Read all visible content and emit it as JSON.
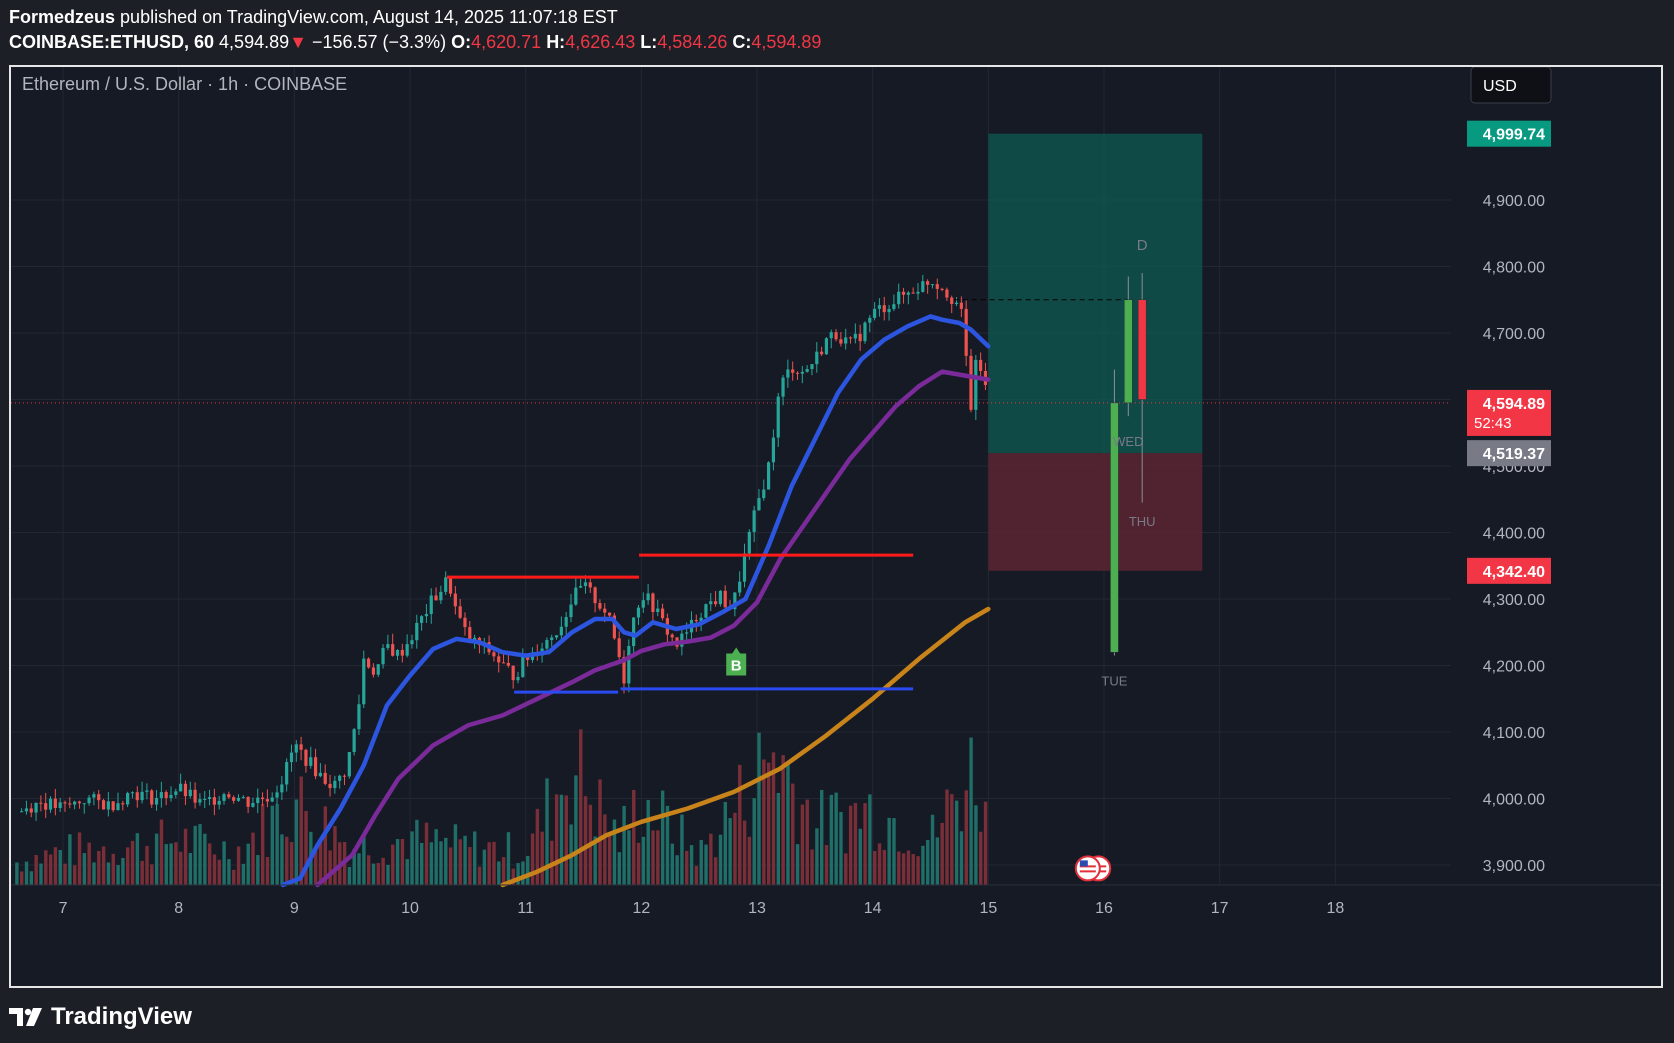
{
  "header": {
    "author": "Formedzeus",
    "published": "published on TradingView.com, August 14, 2025 11:07:18 EST",
    "symbol": "COINBASE:ETHUSD, 60",
    "last": "4,594.89",
    "change_arrow": "▼",
    "change": "−156.57 (−3.3%)",
    "o_label": "O:",
    "o": "4,620.71",
    "h_label": "H:",
    "h": "4,626.43",
    "l_label": "L:",
    "l": "4,584.26",
    "c_label": "C:",
    "c": "4,594.89"
  },
  "footer": {
    "brand": "TradingView",
    "logo_icon": "tradingview-logo-icon"
  },
  "chart_data": {
    "type": "candlestick",
    "title": "Ethereum / U.S. Dollar · 1h · COINBASE",
    "currency_button": "USD",
    "x_tick_labels": [
      "7",
      "8",
      "9",
      "10",
      "11",
      "12",
      "13",
      "14",
      "15",
      "16",
      "17",
      "18"
    ],
    "y_tick_labels": [
      "3,900.00",
      "4,000.00",
      "4,100.00",
      "4,200.00",
      "4,300.00",
      "4,400.00",
      "4,500.00",
      "4,600.00",
      "4,700.00",
      "4,800.00",
      "4,900.00"
    ],
    "y_ticks": [
      3900,
      4000,
      4100,
      4200,
      4300,
      4400,
      4500,
      4600,
      4700,
      4800,
      4900
    ],
    "ylim": [
      3870,
      5100
    ],
    "x_range_days": [
      6.55,
      19.0
    ],
    "last_price": {
      "value": 4594.89,
      "label": "4,594.89",
      "countdown": "52:43",
      "color": "#f23645"
    },
    "price_levels": [
      {
        "value": 4999.74,
        "label": "4,999.74",
        "color": "#089981"
      },
      {
        "value": 4519.37,
        "label": "4,519.37",
        "color": "#787b86"
      },
      {
        "value": 4342.4,
        "label": "4,342.40",
        "color": "#f23645"
      }
    ],
    "position": {
      "entry": 4519.37,
      "target": 4999.74,
      "stop": 4342.4,
      "x_start": 15.0,
      "x_end": 16.85
    },
    "resistance_lines": [
      {
        "from": 10.32,
        "to": 11.98,
        "y": 4333,
        "color": "#ff1a1a"
      },
      {
        "from": 11.98,
        "to": 14.35,
        "y": 4366,
        "color": "#ff1a1a"
      }
    ],
    "support_lines": [
      {
        "from": 10.9,
        "to": 11.8,
        "y": 4160,
        "color": "#2a4bf2"
      },
      {
        "from": 11.82,
        "to": 14.35,
        "y": 4165,
        "color": "#2a4bf2"
      }
    ],
    "signal": {
      "label": "B",
      "x": 12.82,
      "y": 4203,
      "color": "#4caf50"
    },
    "projection": {
      "candles": [
        {
          "x": 16.09,
          "o": 4220,
          "h": 4645,
          "l": 4215,
          "c": 4595,
          "color": "#4caf50",
          "label": "TUE"
        },
        {
          "x": 16.21,
          "o": 4595,
          "h": 4785,
          "l": 4575,
          "c": 4750,
          "color": "#4caf50",
          "label": "WED"
        },
        {
          "x": 16.33,
          "o": 4750,
          "h": 4790,
          "l": 4445,
          "c": 4600,
          "color": "#f23645",
          "label": "THU"
        }
      ],
      "dashed_level": 4750,
      "top_label": "D"
    },
    "moving_averages": [
      {
        "name": "fast",
        "color": "#2c55e0",
        "points": [
          [
            8.9,
            3870
          ],
          [
            9.05,
            3880
          ],
          [
            9.2,
            3930
          ],
          [
            9.4,
            3985
          ],
          [
            9.6,
            4050
          ],
          [
            9.8,
            4140
          ],
          [
            10.0,
            4185
          ],
          [
            10.2,
            4225
          ],
          [
            10.4,
            4240
          ],
          [
            10.6,
            4235
          ],
          [
            10.8,
            4220
          ],
          [
            11.0,
            4215
          ],
          [
            11.2,
            4220
          ],
          [
            11.4,
            4250
          ],
          [
            11.6,
            4270
          ],
          [
            11.75,
            4270
          ],
          [
            11.85,
            4250
          ],
          [
            11.95,
            4245
          ],
          [
            12.1,
            4265
          ],
          [
            12.3,
            4255
          ],
          [
            12.5,
            4262
          ],
          [
            12.7,
            4280
          ],
          [
            12.9,
            4300
          ],
          [
            13.1,
            4380
          ],
          [
            13.3,
            4470
          ],
          [
            13.5,
            4540
          ],
          [
            13.7,
            4610
          ],
          [
            13.9,
            4660
          ],
          [
            14.1,
            4690
          ],
          [
            14.3,
            4710
          ],
          [
            14.5,
            4725
          ],
          [
            14.6,
            4720
          ],
          [
            14.75,
            4715
          ],
          [
            14.85,
            4705
          ],
          [
            15.0,
            4680
          ]
        ]
      },
      {
        "name": "mid",
        "color": "#7b2a9a",
        "points": [
          [
            9.2,
            3870
          ],
          [
            9.5,
            3915
          ],
          [
            9.7,
            3975
          ],
          [
            9.9,
            4030
          ],
          [
            10.2,
            4080
          ],
          [
            10.5,
            4110
          ],
          [
            10.8,
            4125
          ],
          [
            11.1,
            4150
          ],
          [
            11.4,
            4175
          ],
          [
            11.6,
            4193
          ],
          [
            11.85,
            4208
          ],
          [
            12.0,
            4222
          ],
          [
            12.2,
            4232
          ],
          [
            12.4,
            4236
          ],
          [
            12.6,
            4242
          ],
          [
            12.8,
            4260
          ],
          [
            13.0,
            4295
          ],
          [
            13.2,
            4360
          ],
          [
            13.4,
            4410
          ],
          [
            13.6,
            4460
          ],
          [
            13.8,
            4510
          ],
          [
            14.0,
            4550
          ],
          [
            14.2,
            4590
          ],
          [
            14.4,
            4620
          ],
          [
            14.6,
            4642
          ],
          [
            14.8,
            4636
          ],
          [
            15.0,
            4630
          ]
        ]
      },
      {
        "name": "slow",
        "color": "#c8841a",
        "points": [
          [
            10.8,
            3870
          ],
          [
            11.1,
            3890
          ],
          [
            11.4,
            3915
          ],
          [
            11.7,
            3945
          ],
          [
            12.0,
            3965
          ],
          [
            12.4,
            3985
          ],
          [
            12.8,
            4010
          ],
          [
            13.2,
            4045
          ],
          [
            13.6,
            4095
          ],
          [
            14.0,
            4150
          ],
          [
            14.4,
            4210
          ],
          [
            14.8,
            4265
          ],
          [
            15.0,
            4285
          ]
        ]
      }
    ],
    "price_path": [
      [
        6.6,
        3980
      ],
      [
        6.8,
        3995
      ],
      [
        7.0,
        3985
      ],
      [
        7.2,
        4000
      ],
      [
        7.4,
        3990
      ],
      [
        7.6,
        4010
      ],
      [
        7.8,
        4000
      ],
      [
        8.0,
        4015
      ],
      [
        8.2,
        3990
      ],
      [
        8.4,
        4010
      ],
      [
        8.6,
        3995
      ],
      [
        8.8,
        4005
      ],
      [
        8.9,
        4030
      ],
      [
        9.0,
        4080
      ],
      [
        9.05,
        4070
      ],
      [
        9.15,
        4050
      ],
      [
        9.25,
        4030
      ],
      [
        9.35,
        4020
      ],
      [
        9.45,
        4045
      ],
      [
        9.55,
        4130
      ],
      [
        9.6,
        4210
      ],
      [
        9.7,
        4190
      ],
      [
        9.8,
        4230
      ],
      [
        9.9,
        4215
      ],
      [
        10.0,
        4240
      ],
      [
        10.1,
        4270
      ],
      [
        10.2,
        4300
      ],
      [
        10.25,
        4310
      ],
      [
        10.33,
        4330
      ],
      [
        10.4,
        4280
      ],
      [
        10.5,
        4240
      ],
      [
        10.6,
        4230
      ],
      [
        10.7,
        4220
      ],
      [
        10.8,
        4200
      ],
      [
        10.9,
        4185
      ],
      [
        11.0,
        4210
      ],
      [
        11.1,
        4225
      ],
      [
        11.2,
        4240
      ],
      [
        11.3,
        4260
      ],
      [
        11.4,
        4300
      ],
      [
        11.5,
        4320
      ],
      [
        11.6,
        4300
      ],
      [
        11.7,
        4280
      ],
      [
        11.8,
        4220
      ],
      [
        11.85,
        4180
      ],
      [
        11.9,
        4250
      ],
      [
        12.0,
        4310
      ],
      [
        12.1,
        4290
      ],
      [
        12.2,
        4260
      ],
      [
        12.3,
        4230
      ],
      [
        12.4,
        4250
      ],
      [
        12.5,
        4280
      ],
      [
        12.6,
        4295
      ],
      [
        12.7,
        4305
      ],
      [
        12.75,
        4285
      ],
      [
        12.8,
        4295
      ],
      [
        12.9,
        4370
      ],
      [
        13.0,
        4440
      ],
      [
        13.1,
        4500
      ],
      [
        13.15,
        4560
      ],
      [
        13.2,
        4620
      ],
      [
        13.3,
        4650
      ],
      [
        13.4,
        4640
      ],
      [
        13.5,
        4660
      ],
      [
        13.6,
        4690
      ],
      [
        13.7,
        4700
      ],
      [
        13.8,
        4680
      ],
      [
        13.9,
        4700
      ],
      [
        14.0,
        4730
      ],
      [
        14.1,
        4740
      ],
      [
        14.2,
        4750
      ],
      [
        14.3,
        4760
      ],
      [
        14.4,
        4770
      ],
      [
        14.5,
        4780
      ],
      [
        14.6,
        4770
      ],
      [
        14.7,
        4750
      ],
      [
        14.75,
        4740
      ],
      [
        14.8,
        4700
      ],
      [
        14.83,
        4560
      ],
      [
        14.87,
        4620
      ],
      [
        14.9,
        4660
      ],
      [
        14.95,
        4640
      ],
      [
        15.0,
        4595
      ]
    ],
    "volume_profile": [
      [
        6.6,
        0.15
      ],
      [
        7.0,
        0.22
      ],
      [
        7.5,
        0.25
      ],
      [
        8.0,
        0.3
      ],
      [
        8.5,
        0.22
      ],
      [
        9.0,
        0.55
      ],
      [
        9.5,
        0.25
      ],
      [
        10.0,
        0.3
      ],
      [
        10.5,
        0.25
      ],
      [
        11.0,
        0.22
      ],
      [
        11.4,
        0.8
      ],
      [
        11.8,
        0.3
      ],
      [
        12.0,
        0.55
      ],
      [
        12.5,
        0.2
      ],
      [
        12.9,
        0.6
      ],
      [
        13.15,
        0.9
      ],
      [
        13.5,
        0.4
      ],
      [
        14.0,
        0.5
      ],
      [
        14.5,
        0.3
      ],
      [
        14.9,
        0.8
      ],
      [
        15.0,
        0.3
      ]
    ]
  }
}
